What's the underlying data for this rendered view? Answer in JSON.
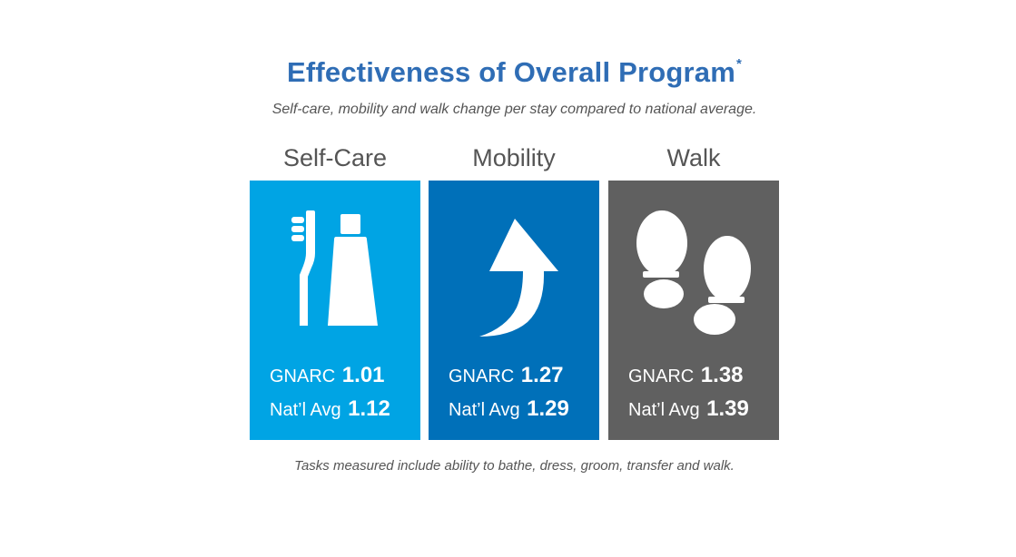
{
  "header": {
    "title": "Effectiveness of Overall Program",
    "title_mark": "*",
    "subtitle": "Self-care, mobility and walk change per stay compared to national average."
  },
  "colors": {
    "title": "#2f6db5",
    "self_care": "#00a4e4",
    "mobility": "#0070b9",
    "walk": "#606060"
  },
  "cards": [
    {
      "heading": "Self-Care",
      "icon": "toothbrush-toothpaste-icon",
      "gnarc_label": "GNARC",
      "gnarc_value": "1.01",
      "natl_label": "Nat’l Avg",
      "natl_value": "1.12"
    },
    {
      "heading": "Mobility",
      "icon": "curved-arrow-up-icon",
      "gnarc_label": "GNARC",
      "gnarc_value": "1.27",
      "natl_label": "Nat’l Avg",
      "natl_value": "1.29"
    },
    {
      "heading": "Walk",
      "icon": "footprints-icon",
      "gnarc_label": "GNARC",
      "gnarc_value": "1.38",
      "natl_label": "Nat’l Avg",
      "natl_value": "1.39"
    }
  ],
  "footnote": "Tasks measured include ability to bathe, dress, groom, transfer and walk."
}
